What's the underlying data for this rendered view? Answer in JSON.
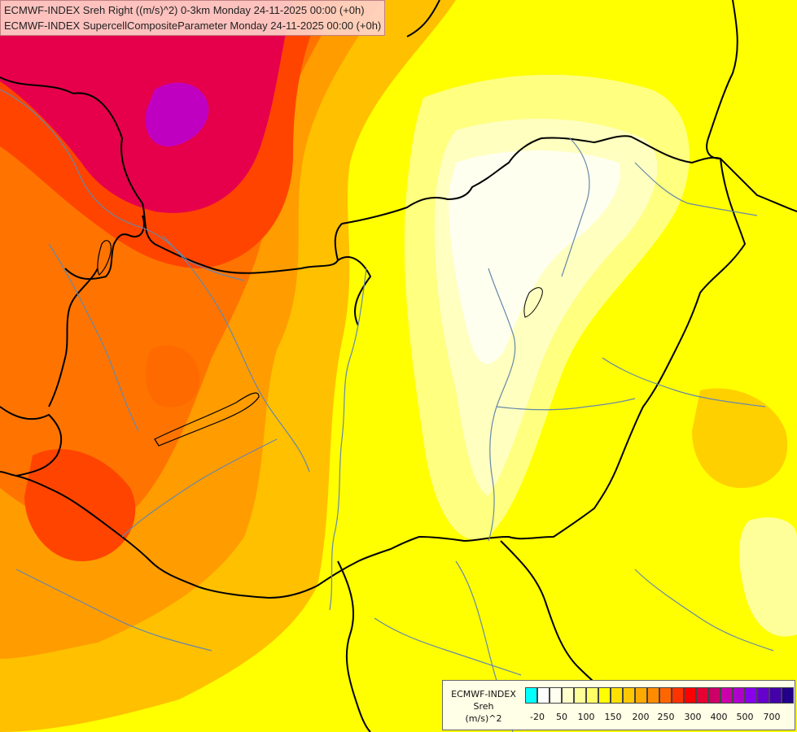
{
  "titles": [
    "ECMWF-INDEX Sreh Right ((m/s)^2) 0-3km Monday 24-11-2025 00:00 (+0h)",
    "ECMWF-INDEX SupercellCompositeParameter Monday 24-11-2025 00:00 (+0h)"
  ],
  "legend": {
    "model": "ECMWF-INDEX",
    "variable": "Sreh",
    "unit": "(m/s)^2",
    "colors": [
      "#00ffff",
      "#ffffff",
      "#fffff0",
      "#ffffcc",
      "#ffff99",
      "#ffff66",
      "#ffff00",
      "#ffe000",
      "#ffc800",
      "#ffaa00",
      "#ff8c00",
      "#ff6600",
      "#ff3300",
      "#ff0000",
      "#e60033",
      "#cc0066",
      "#cc00aa",
      "#b000cc",
      "#8800ee",
      "#6600cc",
      "#4400aa",
      "#220088"
    ],
    "ticks": [
      "-20",
      "50",
      "100",
      "150",
      "200",
      "250",
      "300",
      "400",
      "500",
      "700"
    ]
  },
  "map": {
    "background_color": "#ffff00",
    "border_color": "#000000",
    "river_color": "#6688aa"
  }
}
